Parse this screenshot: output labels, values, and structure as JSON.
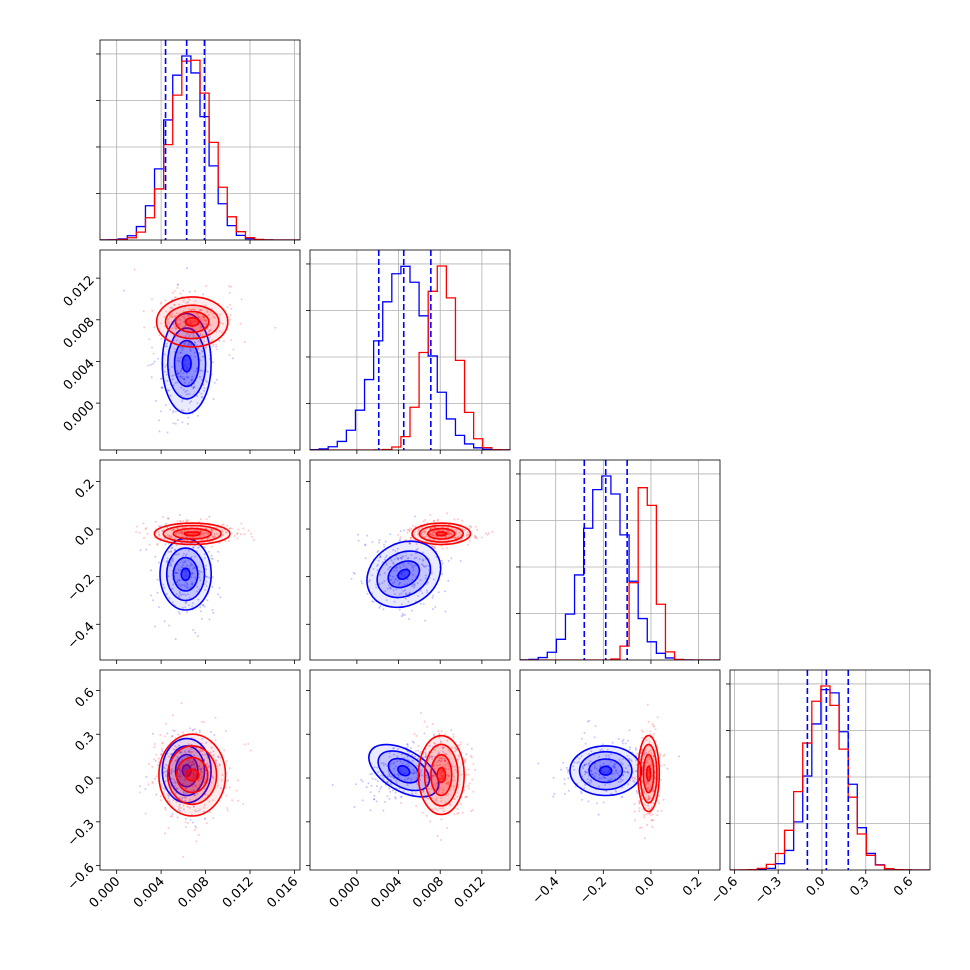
{
  "colors": {
    "blue": "#0000ff",
    "red": "#ff0000",
    "grid": "#b0b0b0",
    "frame": "#000000"
  },
  "chart_data": {
    "type": "corner",
    "title": "",
    "params": [
      {
        "range": [
          -0.0015,
          0.0165
        ],
        "ticks": [
          0.0,
          0.004,
          0.008,
          0.012,
          0.016
        ],
        "tick_labels": [
          "0.000",
          "0.004",
          "0.008",
          "0.012",
          "0.016"
        ]
      },
      {
        "range": [
          -0.0045,
          0.0147
        ],
        "ticks": [
          0.0,
          0.004,
          0.008,
          0.012
        ],
        "tick_labels": [
          "0.000",
          "0.004",
          "0.008",
          "0.012"
        ]
      },
      {
        "range": [
          -0.55,
          0.29
        ],
        "ticks": [
          -0.4,
          -0.2,
          0.0,
          0.2
        ],
        "tick_labels": [
          "−0.4",
          "−0.2",
          "0.0",
          "0.2"
        ]
      },
      {
        "range": [
          -0.63,
          0.74
        ],
        "ticks": [
          -0.6,
          -0.3,
          0.0,
          0.3,
          0.6
        ],
        "tick_labels": [
          "−0.6",
          "−0.3",
          "0.0",
          "0.3",
          "0.6"
        ]
      }
    ],
    "series": [
      {
        "name": "blue",
        "mean": [
          0.0063,
          0.0045,
          -0.19,
          0.05
        ],
        "std": [
          0.0018,
          0.0024,
          0.09,
          0.13
        ],
        "quantiles": [
          [
            0.0044,
            0.0063,
            0.0079
          ],
          [
            0.0021,
            0.0045,
            0.0071
          ],
          [
            -0.28,
            -0.19,
            -0.1
          ],
          [
            -0.1,
            0.03,
            0.18
          ]
        ]
      },
      {
        "name": "red",
        "mean": [
          0.0067,
          0.0081,
          -0.02,
          0.02
        ],
        "std": [
          0.0018,
          0.0015,
          0.04,
          0.14
        ],
        "quantiles": null
      }
    ],
    "contours": [
      {
        "row": 1,
        "col": 0,
        "series": [
          {
            "name": "blue",
            "center": [
              0.0063,
              0.0038
            ],
            "rx": [
              0.0004,
              0.0011,
              0.0017,
              0.0022
            ],
            "ry": [
              0.0008,
              0.0022,
              0.0034,
              0.0048
            ],
            "rotate": 0
          },
          {
            "name": "red",
            "center": [
              0.0068,
              0.0078
            ],
            "rx": [
              0.0006,
              0.0015,
              0.0024,
              0.0032
            ],
            "ry": [
              0.0004,
              0.001,
              0.0016,
              0.0024
            ],
            "rotate": 0
          }
        ]
      },
      {
        "row": 2,
        "col": 0,
        "series": [
          {
            "name": "blue",
            "center": [
              0.0062,
              -0.19
            ],
            "rx": [
              0.0004,
              0.0011,
              0.0017,
              0.0023
            ],
            "ry": [
              0.025,
              0.07,
              0.11,
              0.15
            ],
            "rotate": 0
          },
          {
            "name": "red",
            "center": [
              0.0068,
              -0.02
            ],
            "rx": [
              0.0007,
              0.0017,
              0.0026,
              0.0034
            ],
            "ry": [
              0.008,
              0.022,
              0.035,
              0.045
            ],
            "rotate": 0
          }
        ]
      },
      {
        "row": 2,
        "col": 1,
        "series": [
          {
            "name": "blue",
            "center": [
              0.0045,
              -0.19
            ],
            "rx": [
              0.0006,
              0.0016,
              0.0027,
              0.0037
            ],
            "ry": [
              0.018,
              0.05,
              0.09,
              0.13
            ],
            "rotate": -30
          },
          {
            "name": "red",
            "center": [
              0.0081,
              -0.02
            ],
            "rx": [
              0.0005,
              0.0013,
              0.0021,
              0.0028
            ],
            "ry": [
              0.008,
              0.022,
              0.035,
              0.045
            ],
            "rotate": 0
          }
        ]
      },
      {
        "row": 3,
        "col": 0,
        "series": [
          {
            "name": "blue",
            "center": [
              0.0063,
              0.05
            ],
            "rx": [
              0.0004,
              0.001,
              0.0016,
              0.0022
            ],
            "ry": [
              0.04,
              0.11,
              0.17,
              0.22
            ],
            "rotate": 0
          },
          {
            "name": "red",
            "center": [
              0.0068,
              0.02
            ],
            "rx": [
              0.0006,
              0.0014,
              0.0022,
              0.003
            ],
            "ry": [
              0.04,
              0.12,
              0.2,
              0.28
            ],
            "rotate": 0
          }
        ]
      },
      {
        "row": 3,
        "col": 1,
        "series": [
          {
            "name": "blue",
            "center": [
              0.0045,
              0.05
            ],
            "rx": [
              0.0006,
              0.0016,
              0.0027,
              0.0037
            ],
            "ry": [
              0.03,
              0.07,
              0.11,
              0.14
            ],
            "rotate": 30
          },
          {
            "name": "red",
            "center": [
              0.0081,
              0.02
            ],
            "rx": [
              0.0004,
              0.001,
              0.0016,
              0.0022
            ],
            "ry": [
              0.05,
              0.14,
              0.21,
              0.27
            ],
            "rotate": 0
          }
        ]
      },
      {
        "row": 3,
        "col": 2,
        "series": [
          {
            "name": "blue",
            "center": [
              -0.19,
              0.05
            ],
            "rx": [
              0.025,
              0.07,
              0.11,
              0.15
            ],
            "ry": [
              0.03,
              0.08,
              0.13,
              0.17
            ],
            "rotate": 0
          },
          {
            "name": "red",
            "center": [
              -0.01,
              0.03
            ],
            "rx": [
              0.008,
              0.022,
              0.035,
              0.045
            ],
            "ry": [
              0.05,
              0.13,
              0.2,
              0.26
            ],
            "rotate": 0
          }
        ]
      }
    ]
  }
}
